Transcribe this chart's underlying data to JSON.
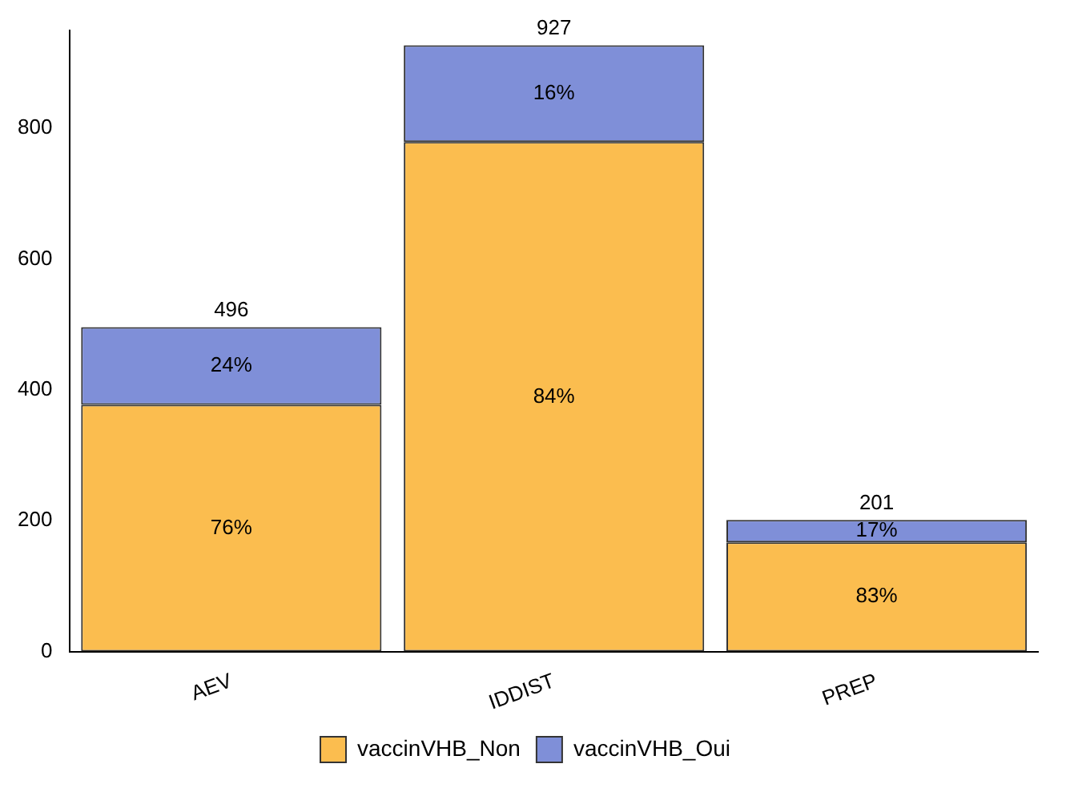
{
  "chart_data": {
    "type": "bar",
    "stacked": true,
    "categories": [
      "AEV",
      "IDDIST",
      "PREP"
    ],
    "series": [
      {
        "name": "vaccinVHB_Non",
        "color": "#fbbd4f",
        "values": [
          377,
          779,
          167
        ]
      },
      {
        "name": "vaccinVHB_Oui",
        "color": "#7f8fd8",
        "values": [
          119,
          148,
          34
        ]
      }
    ],
    "annotations": [
      "76%",
      "24%",
      "84%",
      "16%",
      "83%",
      "17%"
    ],
    "totals": [
      "496",
      "927",
      "201"
    ],
    "ylim": [
      0,
      950
    ],
    "yticks": [
      0,
      200,
      400,
      600,
      800
    ],
    "grid": false,
    "legend": "bottom"
  }
}
